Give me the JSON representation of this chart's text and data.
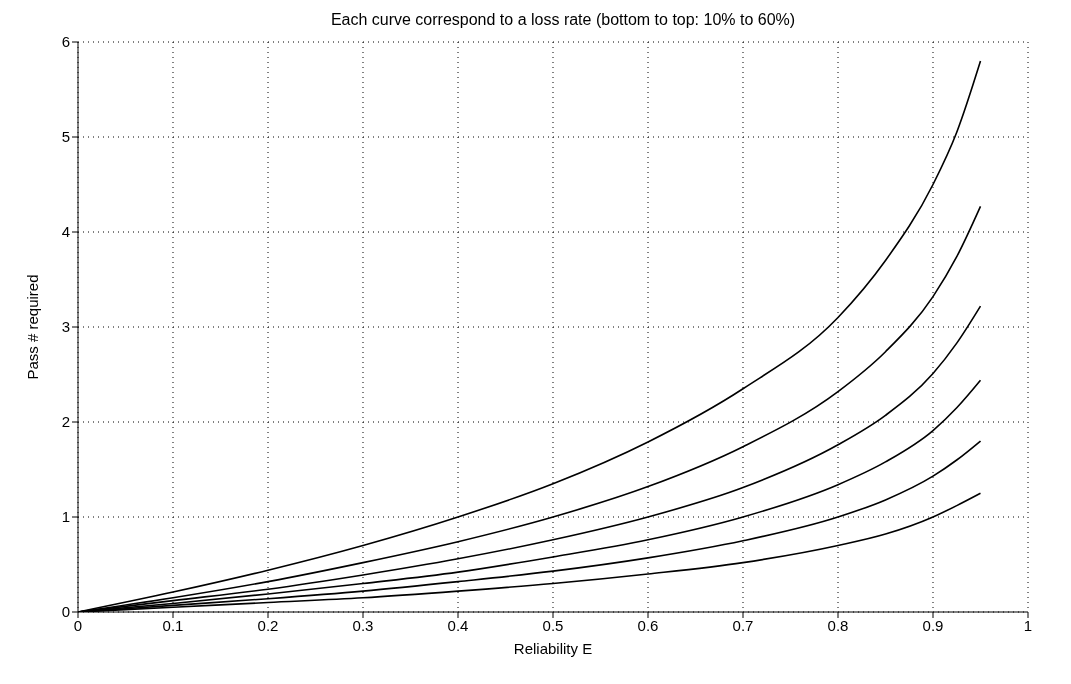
{
  "chart_data": {
    "type": "line",
    "title": "Each curve correspond to a loss rate (bottom to top: 10% to 60%)",
    "xlabel": "Reliability E",
    "ylabel": "Pass # required",
    "x": [
      0,
      0.1,
      0.2,
      0.3,
      0.4,
      0.5,
      0.6,
      0.7,
      0.8,
      0.85,
      0.9,
      0.925,
      0.95
    ],
    "series": [
      {
        "color": "#000000",
        "values": [
          0,
          0.05,
          0.1,
          0.15,
          0.22,
          0.3,
          0.4,
          0.52,
          0.7,
          0.82,
          1.0,
          1.12,
          1.25
        ]
      },
      {
        "color": "#000000",
        "values": [
          0,
          0.07,
          0.14,
          0.22,
          0.32,
          0.43,
          0.57,
          0.75,
          1.0,
          1.18,
          1.43,
          1.6,
          1.8
        ]
      },
      {
        "color": "#000000",
        "values": [
          0,
          0.09,
          0.19,
          0.3,
          0.42,
          0.58,
          0.76,
          1.0,
          1.34,
          1.58,
          1.91,
          2.15,
          2.44
        ]
      },
      {
        "color": "#000000",
        "values": [
          0,
          0.12,
          0.24,
          0.39,
          0.56,
          0.76,
          1.0,
          1.31,
          1.76,
          2.07,
          2.51,
          2.83,
          3.22
        ]
      },
      {
        "color": "#000000",
        "values": [
          0,
          0.15,
          0.32,
          0.52,
          0.74,
          1.0,
          1.32,
          1.74,
          2.32,
          2.74,
          3.32,
          3.74,
          4.27
        ]
      },
      {
        "color": "#000000",
        "values": [
          0,
          0.21,
          0.44,
          0.7,
          1.0,
          1.35,
          1.79,
          2.35,
          3.1,
          3.7,
          4.5,
          5.05,
          5.8
        ]
      }
    ],
    "xlim": [
      0,
      1
    ],
    "xticks": [
      0,
      0.1,
      0.2,
      0.3,
      0.4,
      0.5,
      0.6,
      0.7,
      0.8,
      0.9,
      1
    ],
    "ylim": [
      0,
      6
    ],
    "yticks": [
      0,
      1,
      2,
      3,
      4,
      5,
      6
    ],
    "grid": true,
    "marker": "none",
    "line_style": "solid",
    "legend": false
  }
}
